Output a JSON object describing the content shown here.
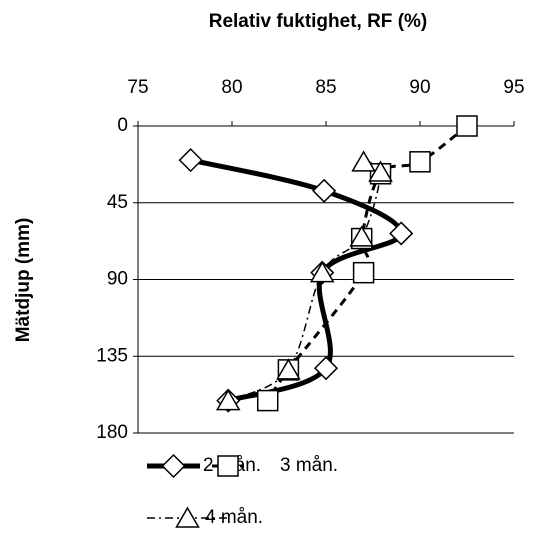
{
  "chart_data": {
    "type": "line",
    "title": "Relativ fuktighet, RF (%)",
    "y_label": "Mätdjup (mm)",
    "xlim": [
      75,
      95
    ],
    "xticks": [
      75,
      80,
      85,
      90,
      95
    ],
    "ylim": [
      0,
      180
    ],
    "yticks": [
      0,
      45,
      90,
      135,
      180
    ],
    "y_inverted": true,
    "x_axis_top": true,
    "grid": true,
    "series": [
      {
        "name": "2 mån.",
        "color": "#000000",
        "marker": "diamond",
        "dash": "solid",
        "x": [
          77.8,
          84.9,
          89.0,
          84.8,
          85.0,
          79.8
        ],
        "values": [
          20,
          38,
          63,
          86,
          142,
          161
        ]
      },
      {
        "name": "3 mån.",
        "color": "#000000",
        "marker": "square",
        "dash": "dashed",
        "x": [
          92.5,
          90.0,
          87.9,
          86.9,
          87.0,
          83.0,
          81.9
        ],
        "values": [
          0,
          21,
          28,
          66,
          86,
          143,
          161
        ]
      },
      {
        "name": "4 mån.",
        "color": "#000000",
        "marker": "triangle",
        "dash": "dashdot",
        "x": [
          87.0,
          87.9,
          86.9,
          84.8,
          83.0,
          79.8
        ],
        "values": [
          21,
          27,
          65,
          86,
          143,
          161
        ]
      }
    ]
  }
}
